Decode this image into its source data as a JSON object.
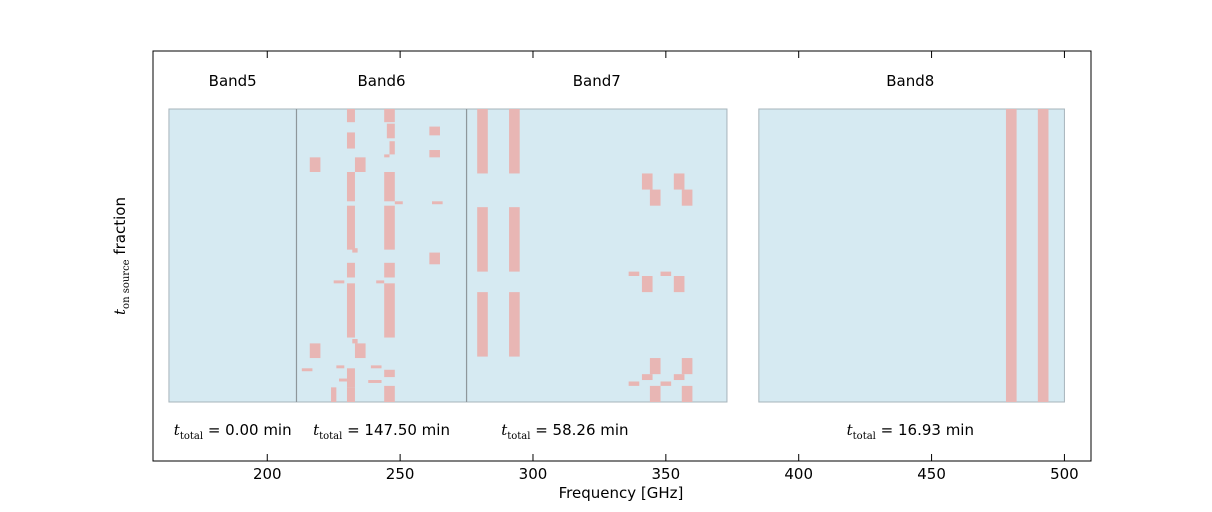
{
  "chart_data": {
    "type": "bar",
    "xlabel": "Frequency [GHz]",
    "ylabel_main": "t",
    "ylabel_sub": "on source",
    "ylabel_suffix": " fraction",
    "xlim": [
      157,
      510
    ],
    "ylim": [
      0,
      1
    ],
    "xticks": [
      200,
      250,
      300,
      350,
      400,
      450,
      500
    ],
    "grid": false,
    "colors": {
      "band_fill": "#d6eaf2",
      "band_edge": "#a7b4bb",
      "divider": "#8e979b",
      "mark": "#e8b6b4"
    },
    "bands": [
      {
        "name": "Band5",
        "range": [
          163,
          211
        ],
        "label_x": 187,
        "total_x": 187,
        "total": "0.00 min"
      },
      {
        "name": "Band6",
        "range": [
          211,
          275
        ],
        "label_x": 243,
        "total_x": 243,
        "total": "147.50 min"
      },
      {
        "name": "Band7",
        "range": [
          275,
          373
        ],
        "label_x": 324,
        "total_x": 312,
        "total": "58.26 min"
      },
      {
        "name": "Band8",
        "range": [
          385,
          500
        ],
        "label_x": 442,
        "total_x": 442,
        "total": "16.93 min"
      }
    ],
    "total_prefix": "t",
    "total_sub": "total",
    "total_eq": " = ",
    "segments": [
      {
        "x": [
          230,
          233
        ],
        "y": [
          0.955,
          1.0
        ]
      },
      {
        "x": [
          230,
          233
        ],
        "y": [
          0.865,
          0.92
        ]
      },
      {
        "x": [
          230,
          233
        ],
        "y": [
          0.685,
          0.785
        ]
      },
      {
        "x": [
          230,
          233
        ],
        "y": [
          0.52,
          0.67
        ]
      },
      {
        "x": [
          232,
          234
        ],
        "y": [
          0.51,
          0.525
        ]
      },
      {
        "x": [
          230,
          233
        ],
        "y": [
          0.425,
          0.475
        ]
      },
      {
        "x": [
          230,
          233
        ],
        "y": [
          0.22,
          0.405
        ]
      },
      {
        "x": [
          232,
          234
        ],
        "y": [
          0.2,
          0.215
        ]
      },
      {
        "x": [
          230,
          233
        ],
        "y": [
          0.05,
          0.115
        ]
      },
      {
        "x": [
          230,
          233
        ],
        "y": [
          0.0,
          0.05
        ]
      },
      {
        "x": [
          244,
          248
        ],
        "y": [
          0.955,
          1.0
        ]
      },
      {
        "x": [
          245,
          248
        ],
        "y": [
          0.9,
          0.95
        ]
      },
      {
        "x": [
          246,
          248
        ],
        "y": [
          0.845,
          0.89
        ]
      },
      {
        "x": [
          244,
          246
        ],
        "y": [
          0.835,
          0.845
        ]
      },
      {
        "x": [
          244,
          248
        ],
        "y": [
          0.685,
          0.785
        ]
      },
      {
        "x": [
          244,
          248
        ],
        "y": [
          0.52,
          0.67
        ]
      },
      {
        "x": [
          244,
          248
        ],
        "y": [
          0.425,
          0.475
        ]
      },
      {
        "x": [
          244,
          248
        ],
        "y": [
          0.22,
          0.405
        ]
      },
      {
        "x": [
          244,
          248
        ],
        "y": [
          0.085,
          0.11
        ]
      },
      {
        "x": [
          244,
          248
        ],
        "y": [
          0.0,
          0.055
        ]
      },
      {
        "x": [
          261,
          265
        ],
        "y": [
          0.91,
          0.94
        ]
      },
      {
        "x": [
          261,
          265
        ],
        "y": [
          0.835,
          0.86
        ]
      },
      {
        "x": [
          261,
          265
        ],
        "y": [
          0.47,
          0.51
        ]
      },
      {
        "x": [
          216,
          220
        ],
        "y": [
          0.785,
          0.835
        ]
      },
      {
        "x": [
          216,
          220
        ],
        "y": [
          0.15,
          0.2
        ]
      },
      {
        "x": [
          233,
          237
        ],
        "y": [
          0.785,
          0.835
        ]
      },
      {
        "x": [
          233,
          237
        ],
        "y": [
          0.15,
          0.2
        ]
      },
      {
        "x": [
          248,
          251
        ],
        "y": [
          0.675,
          0.685
        ]
      },
      {
        "x": [
          262,
          266
        ],
        "y": [
          0.675,
          0.685
        ]
      },
      {
        "x": [
          225,
          229
        ],
        "y": [
          0.405,
          0.415
        ]
      },
      {
        "x": [
          241,
          244
        ],
        "y": [
          0.405,
          0.415
        ]
      },
      {
        "x": [
          213,
          217
        ],
        "y": [
          0.105,
          0.115
        ]
      },
      {
        "x": [
          226,
          229
        ],
        "y": [
          0.115,
          0.125
        ]
      },
      {
        "x": [
          227,
          230
        ],
        "y": [
          0.07,
          0.08
        ]
      },
      {
        "x": [
          239,
          243
        ],
        "y": [
          0.115,
          0.125
        ]
      },
      {
        "x": [
          238,
          243
        ],
        "y": [
          0.065,
          0.075
        ]
      },
      {
        "x": [
          224,
          226
        ],
        "y": [
          0.0,
          0.05
        ]
      },
      {
        "x": [
          279,
          283
        ],
        "y": [
          0.78,
          1.0
        ]
      },
      {
        "x": [
          279,
          283
        ],
        "y": [
          0.445,
          0.665
        ]
      },
      {
        "x": [
          279,
          283
        ],
        "y": [
          0.155,
          0.375
        ]
      },
      {
        "x": [
          291,
          295
        ],
        "y": [
          0.78,
          1.0
        ]
      },
      {
        "x": [
          291,
          295
        ],
        "y": [
          0.445,
          0.665
        ]
      },
      {
        "x": [
          291,
          295
        ],
        "y": [
          0.155,
          0.375
        ]
      },
      {
        "x": [
          341,
          345
        ],
        "y": [
          0.725,
          0.78
        ]
      },
      {
        "x": [
          344,
          348
        ],
        "y": [
          0.67,
          0.725
        ]
      },
      {
        "x": [
          353,
          357
        ],
        "y": [
          0.725,
          0.78
        ]
      },
      {
        "x": [
          356,
          360
        ],
        "y": [
          0.67,
          0.725
        ]
      },
      {
        "x": [
          336,
          340
        ],
        "y": [
          0.43,
          0.445
        ]
      },
      {
        "x": [
          341,
          345
        ],
        "y": [
          0.375,
          0.43
        ]
      },
      {
        "x": [
          348,
          352
        ],
        "y": [
          0.43,
          0.445
        ]
      },
      {
        "x": [
          353,
          357
        ],
        "y": [
          0.375,
          0.43
        ]
      },
      {
        "x": [
          344,
          348
        ],
        "y": [
          0.095,
          0.15
        ]
      },
      {
        "x": [
          341,
          345
        ],
        "y": [
          0.075,
          0.095
        ]
      },
      {
        "x": [
          356,
          360
        ],
        "y": [
          0.095,
          0.15
        ]
      },
      {
        "x": [
          353,
          357
        ],
        "y": [
          0.075,
          0.095
        ]
      },
      {
        "x": [
          336,
          340
        ],
        "y": [
          0.055,
          0.07
        ]
      },
      {
        "x": [
          348,
          352
        ],
        "y": [
          0.055,
          0.07
        ]
      },
      {
        "x": [
          344,
          348
        ],
        "y": [
          0.0,
          0.055
        ]
      },
      {
        "x": [
          356,
          360
        ],
        "y": [
          0.0,
          0.055
        ]
      },
      {
        "x": [
          478,
          482
        ],
        "y": [
          0.0,
          1.0
        ]
      },
      {
        "x": [
          490,
          494
        ],
        "y": [
          0.0,
          1.0
        ]
      }
    ]
  }
}
